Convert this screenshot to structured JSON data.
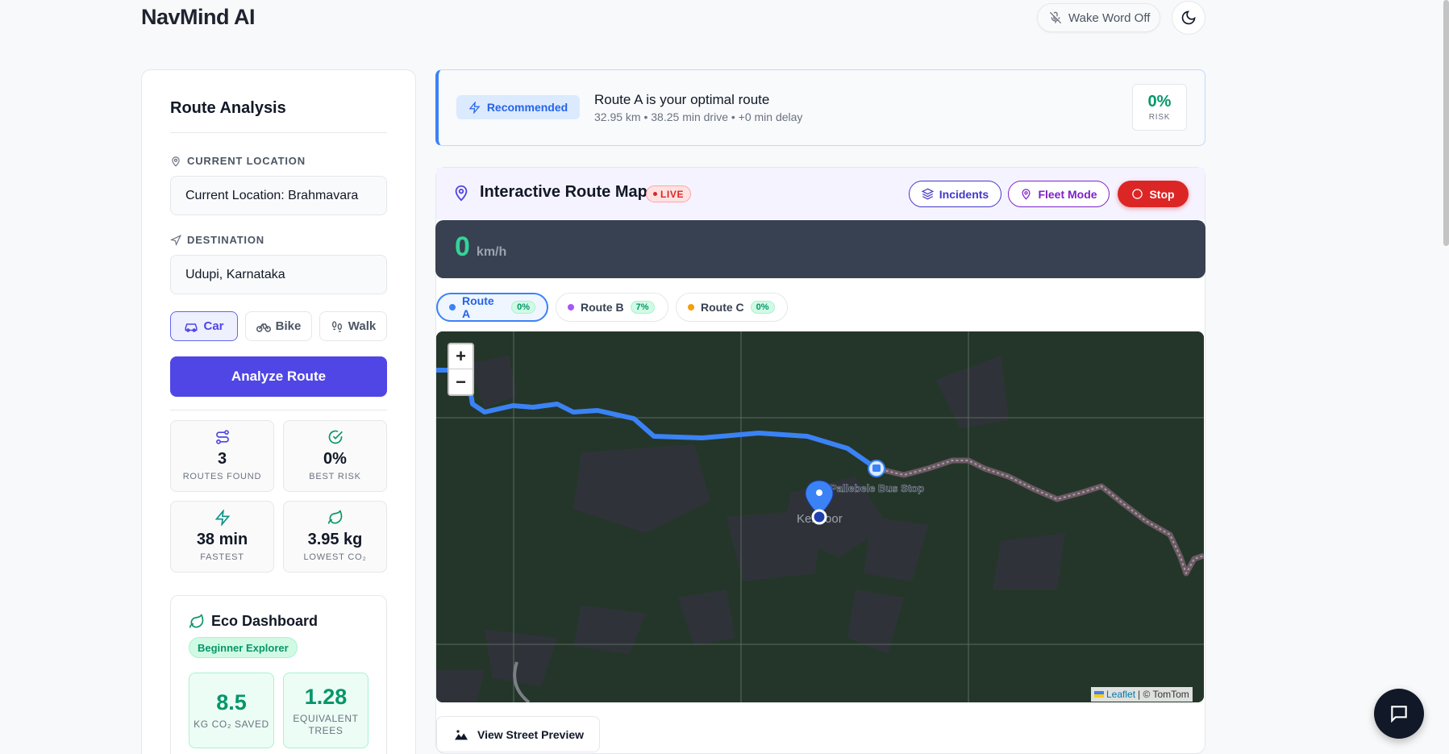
{
  "app": {
    "title": "NavMind AI",
    "wake_word": "Wake Word Off"
  },
  "panel": {
    "title": "Route Analysis",
    "current_label": "CURRENT LOCATION",
    "current_value": "Current Location: Brahmavara",
    "destination_label": "DESTINATION",
    "destination_value": "Udupi, Karnataka",
    "modes": [
      {
        "label": "Car",
        "active": true
      },
      {
        "label": "Bike",
        "active": false
      },
      {
        "label": "Walk",
        "active": false
      }
    ],
    "analyze_label": "Analyze Route",
    "stats": [
      {
        "value": "3",
        "label": "ROUTES FOUND",
        "icon": "routes-icon"
      },
      {
        "value": "0%",
        "label": "BEST RISK",
        "icon": "check-circle-icon"
      },
      {
        "value": "38 min",
        "label": "FASTEST",
        "icon": "bolt-icon"
      },
      {
        "value": "3.95 kg",
        "label": "LOWEST CO₂",
        "icon": "leaf-icon"
      }
    ]
  },
  "eco": {
    "title": "Eco Dashboard",
    "badge": "Beginner Explorer",
    "cards": [
      {
        "value": "8.5",
        "label_1": "KG CO₂ SAVED",
        "label_2": ""
      },
      {
        "value": "1.28",
        "label_1": "EQUIVALENT",
        "label_2": "TREES"
      }
    ]
  },
  "recommendation": {
    "badge": "Recommended",
    "title": "Route A is your optimal route",
    "subtitle": "32.95 km • 38.25 min drive • +0 min delay",
    "risk_value": "0%",
    "risk_label": "RISK"
  },
  "map": {
    "title": "Interactive Route Map",
    "live": "LIVE",
    "incidents": "Incidents",
    "fleet": "Fleet Mode",
    "stop": "Stop",
    "speed_value": "0",
    "speed_unit": "km/h",
    "routes": [
      {
        "label": "Route A",
        "risk": "0%",
        "color": "#3b82f6",
        "active": true
      },
      {
        "label": "Route B",
        "risk": "7%",
        "color": "#a855f7",
        "active": false
      },
      {
        "label": "Route C",
        "risk": "0%",
        "color": "#f59e0b",
        "active": false
      }
    ],
    "zoom_in": "+",
    "zoom_out": "−",
    "bus_stop_label": "Pallebele Bus Stop",
    "place_label": "Kennoor",
    "attribution_link": "Leaflet",
    "attribution_text": "| © TomTom",
    "street_preview": "View Street Preview"
  }
}
